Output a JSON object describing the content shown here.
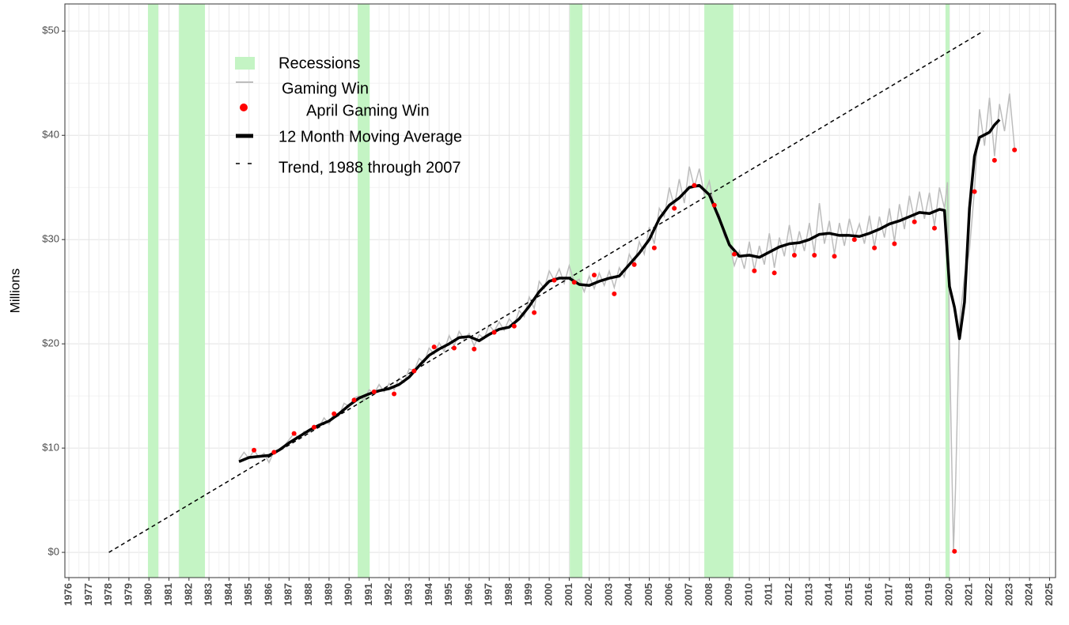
{
  "chart_data": {
    "type": "line",
    "ylabel": "Millions",
    "xlim": [
      1975.8,
      2025.3
    ],
    "ylim": [
      -2.42,
      52.6
    ],
    "xticks": [
      1976,
      1977,
      1978,
      1979,
      1980,
      1981,
      1982,
      1983,
      1984,
      1985,
      1986,
      1987,
      1988,
      1989,
      1990,
      1991,
      1992,
      1993,
      1994,
      1995,
      1996,
      1997,
      1998,
      1999,
      2000,
      2001,
      2002,
      2003,
      2004,
      2005,
      2006,
      2007,
      2008,
      2009,
      2010,
      2011,
      2012,
      2013,
      2014,
      2015,
      2016,
      2017,
      2018,
      2019,
      2020,
      2021,
      2022,
      2023,
      2024,
      2025
    ],
    "yticks": [
      {
        "value": 0,
        "label": "$0"
      },
      {
        "value": 10,
        "label": "$10"
      },
      {
        "value": 20,
        "label": "$20"
      },
      {
        "value": 30,
        "label": "$30"
      },
      {
        "value": 40,
        "label": "$40"
      },
      {
        "value": 50,
        "label": "$50"
      }
    ],
    "grid": true,
    "recessions": {
      "name": "Recessions",
      "color": "#c4f4c4",
      "ranges": [
        [
          1979.95,
          1980.47
        ],
        [
          1981.5,
          1982.8
        ],
        [
          1990.43,
          1991.03
        ],
        [
          2001.03,
          2001.66
        ],
        [
          2007.75,
          2009.2
        ],
        [
          2019.8,
          2020.0
        ]
      ]
    },
    "series": [
      {
        "name": "Gaming Win",
        "style": "line",
        "color": "#bdbdbd",
        "x": [
          1984.5,
          1984.75,
          1985,
          1985.25,
          1985.5,
          1985.75,
          1986,
          1986.25,
          1986.5,
          1986.75,
          1987,
          1987.25,
          1987.5,
          1987.75,
          1988,
          1988.25,
          1988.5,
          1988.75,
          1989,
          1989.25,
          1989.5,
          1989.75,
          1990,
          1990.25,
          1990.5,
          1990.75,
          1991,
          1991.25,
          1991.5,
          1991.75,
          1992,
          1992.25,
          1992.5,
          1992.75,
          1993,
          1993.25,
          1993.5,
          1993.75,
          1994,
          1994.25,
          1994.5,
          1994.75,
          1995,
          1995.25,
          1995.5,
          1995.75,
          1996,
          1996.25,
          1996.5,
          1996.75,
          1997,
          1997.25,
          1997.5,
          1997.75,
          1998,
          1998.25,
          1998.5,
          1998.75,
          1999,
          1999.25,
          1999.5,
          1999.75,
          2000,
          2000.25,
          2000.5,
          2000.75,
          2001,
          2001.25,
          2001.5,
          2001.75,
          2002,
          2002.25,
          2002.5,
          2002.75,
          2003,
          2003.25,
          2003.5,
          2003.75,
          2004,
          2004.25,
          2004.5,
          2004.75,
          2005,
          2005.25,
          2005.5,
          2005.75,
          2006,
          2006.25,
          2006.5,
          2006.75,
          2007,
          2007.25,
          2007.5,
          2007.75,
          2008,
          2008.25,
          2008.5,
          2008.75,
          2009,
          2009.25,
          2009.5,
          2009.75,
          2010,
          2010.25,
          2010.5,
          2010.75,
          2011,
          2011.25,
          2011.5,
          2011.75,
          2012,
          2012.25,
          2012.5,
          2012.75,
          2013,
          2013.25,
          2013.5,
          2013.75,
          2014,
          2014.25,
          2014.5,
          2014.75,
          2015,
          2015.25,
          2015.5,
          2015.75,
          2016,
          2016.25,
          2016.5,
          2016.75,
          2017,
          2017.25,
          2017.5,
          2017.75,
          2018,
          2018.25,
          2018.5,
          2018.75,
          2019,
          2019.25,
          2019.5,
          2019.75,
          2019.9,
          2020,
          2020.2,
          2020.3,
          2020.5,
          2020.75,
          2021,
          2021.25,
          2021.5,
          2021.75,
          2022,
          2022.25,
          2022.5,
          2022.75,
          2023,
          2023.25
        ],
        "values": [
          8.9,
          9.6,
          9.0,
          9.8,
          9.1,
          9.5,
          8.6,
          9.7,
          9.9,
          10.2,
          10.8,
          11.4,
          10.9,
          11.6,
          11.5,
          12.2,
          12.0,
          12.9,
          12.3,
          13.4,
          13.1,
          14.3,
          14.0,
          14.8,
          15.0,
          14.6,
          15.6,
          15.2,
          16.1,
          15.4,
          16.2,
          15.6,
          16.7,
          16.3,
          17.6,
          17.4,
          18.6,
          18.2,
          19.6,
          19.0,
          20.1,
          19.3,
          20.8,
          19.8,
          21.2,
          20.4,
          21.0,
          19.8,
          20.9,
          20.5,
          21.8,
          21.2,
          22.1,
          21.3,
          22.4,
          21.8,
          23.2,
          22.6,
          24.5,
          23.4,
          26.0,
          25.3,
          27.0,
          26.1,
          27.2,
          25.8,
          27.5,
          25.9,
          26.2,
          25.0,
          26.5,
          25.3,
          26.8,
          25.6,
          27.0,
          25.4,
          27.3,
          26.4,
          28.6,
          27.6,
          29.8,
          28.6,
          31.2,
          29.6,
          33.0,
          32.2,
          35.0,
          33.2,
          35.8,
          33.5,
          37.0,
          35.0,
          36.8,
          34.3,
          35.6,
          33.0,
          32.4,
          30.3,
          29.6,
          27.5,
          28.9,
          27.2,
          29.8,
          27.1,
          29.4,
          27.6,
          30.6,
          27.3,
          30.2,
          28.4,
          31.4,
          28.6,
          30.8,
          28.9,
          31.6,
          28.7,
          33.5,
          29.6,
          31.8,
          28.6,
          31.6,
          29.4,
          32.0,
          30.1,
          31.5,
          29.6,
          32.3,
          29.3,
          32.2,
          30.2,
          33.0,
          29.8,
          33.4,
          31.0,
          34.2,
          31.9,
          34.6,
          32.0,
          34.5,
          31.3,
          35.0,
          33.0,
          35.5,
          20.0,
          0.1,
          6.0,
          22.0,
          26.5,
          29.0,
          34.8,
          42.5,
          39.0,
          43.6,
          38.0,
          43.0,
          40.4,
          44.0,
          38.8
        ]
      },
      {
        "name": "April Gaming Win",
        "style": "points",
        "color": "#ff0000",
        "x": [
          1985.25,
          1986.25,
          1987.25,
          1988.25,
          1989.25,
          1990.25,
          1991.25,
          1992.25,
          1993.25,
          1994.25,
          1995.25,
          1996.25,
          1997.25,
          1998.25,
          1999.25,
          2000.25,
          2001.25,
          2002.25,
          2003.25,
          2004.25,
          2005.25,
          2006.25,
          2007.25,
          2008.25,
          2009.25,
          2010.25,
          2011.25,
          2012.25,
          2013.25,
          2014.25,
          2015.25,
          2016.25,
          2017.25,
          2018.25,
          2019.25,
          2020.25,
          2021.25,
          2022.25,
          2023.25
        ],
        "values": [
          9.8,
          9.6,
          11.4,
          12.0,
          13.3,
          14.6,
          15.4,
          15.2,
          17.4,
          19.7,
          19.6,
          19.5,
          21.1,
          21.7,
          23.0,
          26.1,
          25.9,
          26.6,
          24.8,
          27.6,
          29.2,
          33.0,
          35.2,
          33.3,
          28.6,
          27.0,
          26.8,
          28.5,
          28.5,
          28.4,
          30.0,
          29.2,
          29.6,
          31.7,
          31.1,
          0.1,
          34.6,
          37.6,
          38.6
        ]
      },
      {
        "name": "12 Month Moving Average",
        "style": "thick",
        "color": "#000000",
        "x": [
          1984.5,
          1985,
          1985.5,
          1986,
          1986.5,
          1987,
          1987.5,
          1988,
          1988.5,
          1989,
          1989.5,
          1990,
          1990.5,
          1991,
          1991.5,
          1992,
          1992.5,
          1993,
          1993.5,
          1994,
          1994.5,
          1995,
          1995.5,
          1996,
          1996.5,
          1997,
          1997.5,
          1998,
          1998.5,
          1999,
          1999.5,
          2000,
          2000.5,
          2001,
          2001.5,
          2002,
          2002.5,
          2003,
          2003.5,
          2004,
          2004.5,
          2005,
          2005.5,
          2006,
          2006.5,
          2007,
          2007.5,
          2008,
          2008.5,
          2009,
          2009.5,
          2010,
          2010.5,
          2011,
          2011.5,
          2012,
          2012.5,
          2013,
          2013.5,
          2014,
          2014.5,
          2015,
          2015.5,
          2016,
          2016.5,
          2017,
          2017.5,
          2018,
          2018.5,
          2019,
          2019.5,
          2019.75,
          2020,
          2020.25,
          2020.5,
          2020.75,
          2021,
          2021.25,
          2021.5,
          2022,
          2022.25,
          2022.5
        ],
        "values": [
          8.7,
          9.1,
          9.2,
          9.3,
          9.8,
          10.5,
          11.1,
          11.7,
          12.2,
          12.6,
          13.3,
          14.1,
          14.8,
          15.2,
          15.5,
          15.7,
          16.1,
          16.8,
          17.9,
          18.9,
          19.5,
          20.0,
          20.6,
          20.7,
          20.3,
          20.9,
          21.4,
          21.6,
          22.4,
          23.6,
          25.0,
          26.0,
          26.3,
          26.3,
          25.7,
          25.6,
          26.0,
          26.3,
          26.5,
          27.6,
          28.7,
          30.0,
          32.0,
          33.3,
          34.0,
          35.0,
          35.2,
          34.3,
          32.0,
          29.5,
          28.4,
          28.5,
          28.3,
          28.8,
          29.3,
          29.6,
          29.7,
          30.0,
          30.5,
          30.6,
          30.4,
          30.4,
          30.3,
          30.6,
          31.0,
          31.5,
          31.8,
          32.2,
          32.6,
          32.5,
          32.9,
          32.8,
          25.5,
          23.5,
          20.5,
          24.0,
          33.0,
          38.0,
          39.8,
          40.3,
          41.0,
          41.5
        ]
      },
      {
        "name": "Trend, 1988 through 2007",
        "style": "dashed",
        "color": "#000000",
        "x": [
          1978,
          2021.7
        ],
        "values": [
          0,
          50
        ]
      }
    ]
  }
}
